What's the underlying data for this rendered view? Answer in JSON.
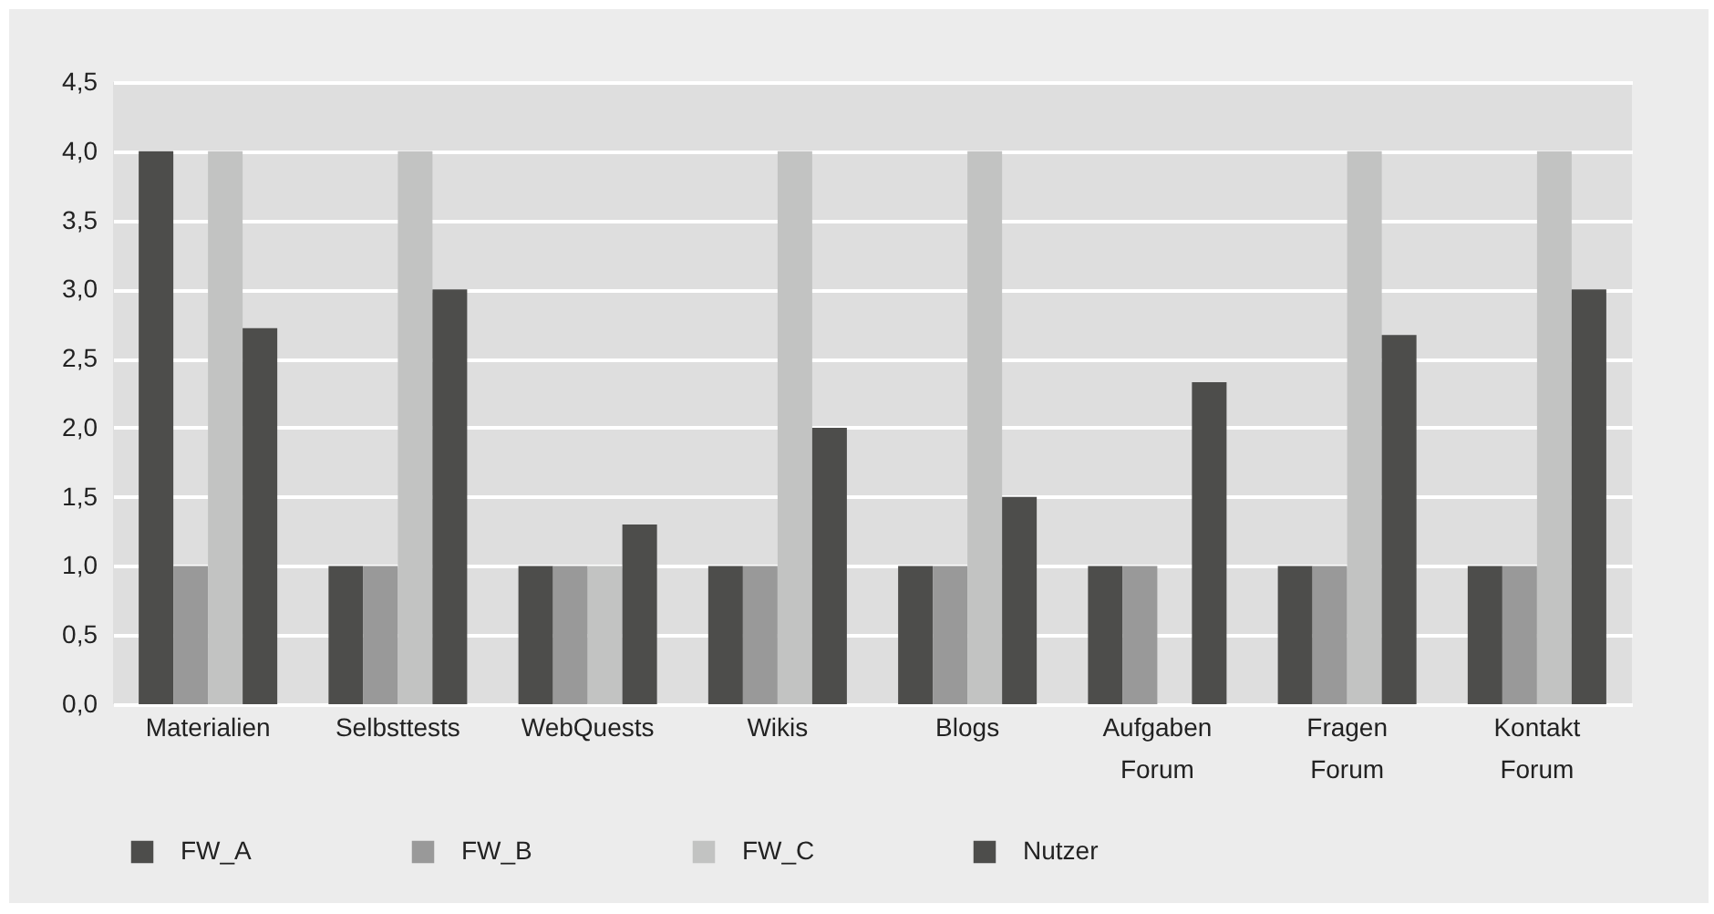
{
  "chart_data": {
    "type": "bar",
    "categories": [
      "Materialien",
      "Selbsttests",
      "WebQuests",
      "Wikis",
      "Blogs",
      "Aufgaben Forum",
      "Fragen Forum",
      "Kontakt Forum"
    ],
    "series": [
      {
        "name": "FW_A",
        "color": "#4d4d4b",
        "values": [
          4.0,
          1.0,
          1.0,
          1.0,
          1.0,
          1.0,
          1.0,
          1.0
        ]
      },
      {
        "name": "FW_B",
        "color": "#999999",
        "values": [
          1.0,
          1.0,
          1.0,
          1.0,
          1.0,
          1.0,
          1.0,
          1.0
        ]
      },
      {
        "name": "FW_C",
        "color": "#c2c3c2",
        "values": [
          4.0,
          4.0,
          1.0,
          4.0,
          4.0,
          null,
          4.0,
          4.0
        ]
      },
      {
        "name": "Nutzer",
        "color": "#4d4d4b",
        "values": [
          2.72,
          3.0,
          1.3,
          2.0,
          1.5,
          2.33,
          2.67,
          3.0
        ]
      }
    ],
    "ylim": [
      0,
      4.5
    ],
    "yticks": [
      {
        "value": 0,
        "label": "0,0"
      },
      {
        "value": 0.5,
        "label": "0,5"
      },
      {
        "value": 1,
        "label": "1,0"
      },
      {
        "value": 1.5,
        "label": "1,5"
      },
      {
        "value": 2,
        "label": "2,0"
      },
      {
        "value": 2.5,
        "label": "2,5"
      },
      {
        "value": 3,
        "label": "3,0"
      },
      {
        "value": 3.5,
        "label": "3,5"
      },
      {
        "value": 4,
        "label": "4,0"
      },
      {
        "value": 4.5,
        "label": "4,5"
      }
    ],
    "grid": "y",
    "legend": "bottom"
  }
}
